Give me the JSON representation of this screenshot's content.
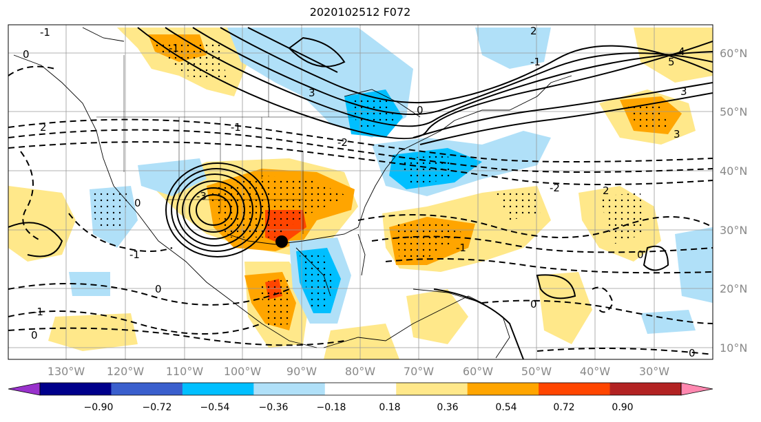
{
  "title": "2020102512 F072",
  "map": {
    "lon_labels": [
      "130°W",
      "120°W",
      "110°W",
      "100°W",
      "90°W",
      "80°W",
      "70°W",
      "60°W",
      "50°W",
      "40°W",
      "30°W"
    ],
    "lat_labels": [
      "60°N",
      "50°N",
      "40°N",
      "30°N",
      "20°N",
      "10°N"
    ],
    "contour_labels": [
      "-1",
      "0",
      "-1",
      "2",
      "3",
      "-3",
      "0",
      "-1",
      "2",
      "3",
      "4",
      "5",
      "3",
      "-2",
      "0",
      "-1",
      "0",
      "0",
      "-1",
      "-2",
      "-1",
      "0",
      "0",
      "-1",
      "2",
      "0"
    ],
    "marker": "location-dot"
  },
  "colorbar": {
    "ticks": [
      "−0.90",
      "−0.72",
      "−0.54",
      "−0.36",
      "−0.18",
      "0.18",
      "0.36",
      "0.54",
      "0.72",
      "0.90"
    ],
    "colors": [
      "#9932cc",
      "#00008b",
      "#3a5fcd",
      "#00bfff",
      "#b0e0f8",
      "#ffffff",
      "#ffe88a",
      "#ffa500",
      "#ff4500",
      "#b22222",
      "#ff88b0"
    ]
  },
  "legend_colors": {
    "positive_weak": "#ffe88a",
    "positive_mid": "#ffa500",
    "positive_strong": "#ff4500",
    "negative_weak": "#b0e0f8",
    "negative_mid": "#00bfff"
  }
}
